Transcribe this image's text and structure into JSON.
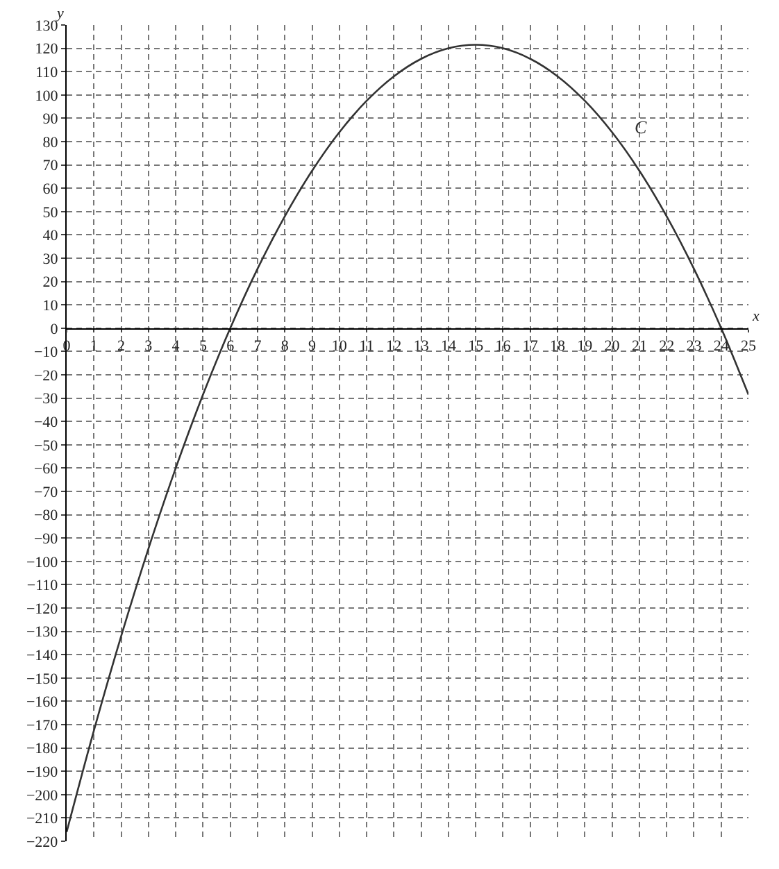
{
  "chart_data": {
    "type": "line",
    "xlabel": "x",
    "ylabel": "y",
    "x": [
      0,
      1,
      2,
      3,
      4,
      5,
      6,
      7,
      8,
      9,
      10,
      11,
      12,
      13,
      14,
      15,
      16,
      17,
      18,
      19,
      20,
      21,
      22,
      23,
      24,
      25
    ],
    "series": [
      {
        "name": "C",
        "color": "#333333",
        "values": [
          -216,
          -172.5,
          -132,
          -94.5,
          -60,
          -28.5,
          0,
          25.5,
          48,
          67.5,
          84,
          97.5,
          108,
          115.5,
          120,
          121.5,
          120,
          115.5,
          108,
          97.5,
          84,
          67.5,
          48,
          25.5,
          0,
          -28.5
        ]
      }
    ],
    "xlim": [
      0,
      25
    ],
    "ylim": [
      -220,
      130
    ],
    "xticks": [
      0,
      1,
      2,
      3,
      4,
      5,
      6,
      7,
      8,
      9,
      10,
      11,
      12,
      13,
      14,
      15,
      16,
      17,
      18,
      19,
      20,
      21,
      22,
      23,
      24,
      25
    ],
    "yticks": [
      -220,
      -210,
      -200,
      -190,
      -180,
      -170,
      -160,
      -150,
      -140,
      -130,
      -120,
      -110,
      -100,
      -90,
      -80,
      -70,
      -60,
      -50,
      -40,
      -30,
      -20,
      -10,
      0,
      10,
      20,
      30,
      40,
      50,
      60,
      70,
      80,
      90,
      100,
      110,
      120,
      130
    ],
    "grid": true,
    "marker": "none",
    "line_style": "solid",
    "legend": false
  }
}
